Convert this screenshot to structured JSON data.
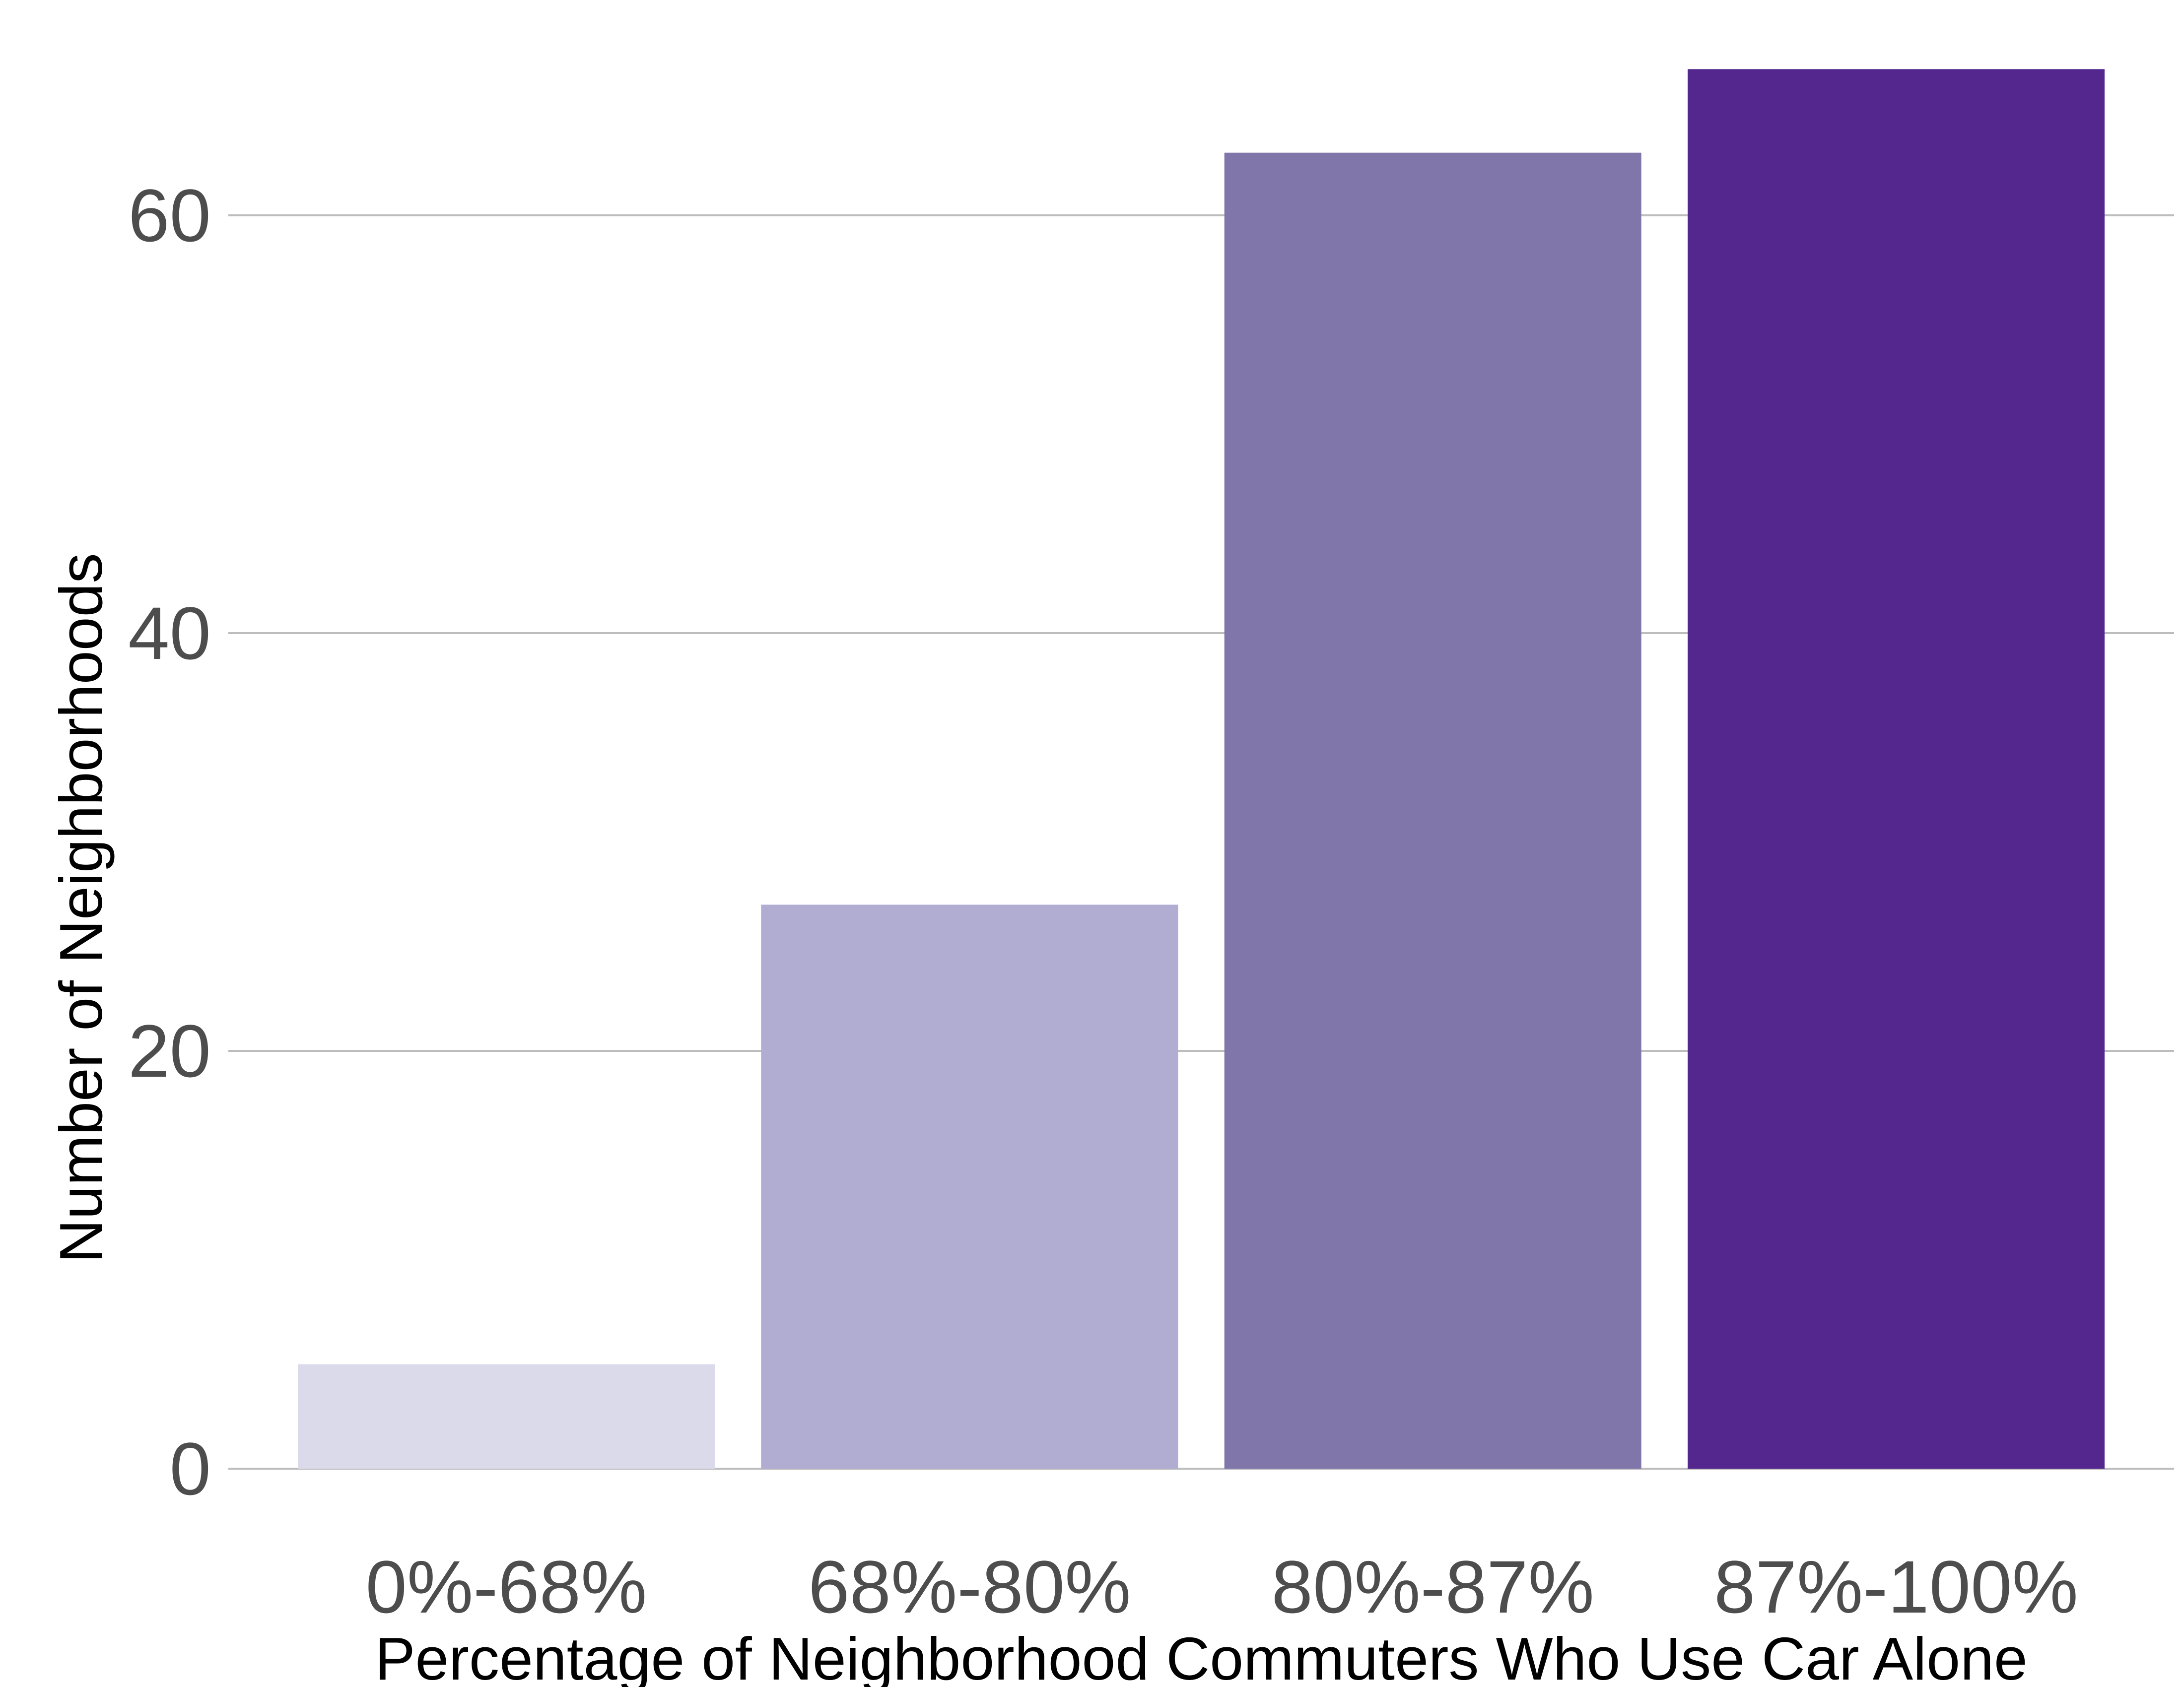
{
  "chart_data": {
    "type": "bar",
    "categories": [
      "0%-68%",
      "68%-80%",
      "80%-87%",
      "87%-100%"
    ],
    "values": [
      5,
      27,
      63,
      67
    ],
    "colors": [
      "#dadaeb",
      "#b1acd1",
      "#8176aa",
      "#54278f"
    ],
    "xlabel": "Percentage of Neighborhood Commuters Who Use Car Alone",
    "ylabel": "Number of Neighborhoods",
    "ylim": [
      0,
      70
    ],
    "yticks": [
      0,
      20,
      40,
      60
    ],
    "grid": true,
    "legend": "none"
  }
}
